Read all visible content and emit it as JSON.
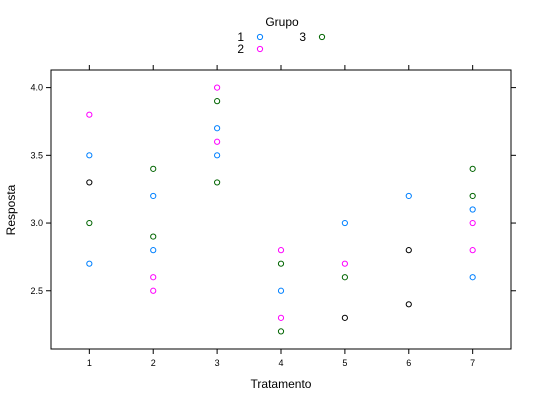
{
  "chart_data": {
    "type": "scatter",
    "xlabel": "Tratamento",
    "ylabel": "Resposta",
    "xlim": [
      0.4,
      7.6
    ],
    "ylim": [
      2.07,
      4.13
    ],
    "x_ticks": [
      1,
      2,
      3,
      4,
      5,
      6,
      7
    ],
    "y_ticks": [
      2.5,
      3.0,
      3.5,
      4.0
    ],
    "y_tick_labels": [
      "2.5",
      "3.0",
      "3.5",
      "4.0"
    ],
    "grid": false,
    "legend": {
      "title": "Grupo",
      "position": "top-center",
      "entries": [
        {
          "label": "1",
          "color": "#0080ff"
        },
        {
          "label": "2",
          "color": "#ff00ff"
        },
        {
          "label": "3",
          "color": "#006400"
        }
      ]
    },
    "series": [
      {
        "name": "1",
        "color": "#0080ff",
        "points": [
          [
            1,
            3.5
          ],
          [
            1,
            2.7
          ],
          [
            2,
            3.2
          ],
          [
            2,
            2.8
          ],
          [
            3,
            3.7
          ],
          [
            3,
            3.5
          ],
          [
            4,
            2.5
          ],
          [
            5,
            3.0
          ],
          [
            6,
            3.2
          ],
          [
            7,
            3.1
          ],
          [
            7,
            2.6
          ]
        ]
      },
      {
        "name": "2",
        "color": "#ff00ff",
        "points": [
          [
            1,
            3.8
          ],
          [
            2,
            2.6
          ],
          [
            2,
            2.5
          ],
          [
            3,
            4.0
          ],
          [
            3,
            3.6
          ],
          [
            4,
            2.8
          ],
          [
            4,
            2.3
          ],
          [
            5,
            2.7
          ],
          [
            7,
            3.0
          ],
          [
            7,
            2.8
          ]
        ]
      },
      {
        "name": "3",
        "color": "#006400",
        "points": [
          [
            1,
            3.0
          ],
          [
            2,
            3.4
          ],
          [
            2,
            2.9
          ],
          [
            3,
            3.9
          ],
          [
            3,
            3.3
          ],
          [
            4,
            2.7
          ],
          [
            4,
            2.2
          ],
          [
            5,
            2.6
          ],
          [
            7,
            3.4
          ],
          [
            7,
            3.2
          ]
        ]
      },
      {
        "color": "#000000",
        "points": [
          [
            1,
            3.3
          ],
          [
            5,
            2.3
          ],
          [
            6,
            2.8
          ],
          [
            6,
            2.4
          ]
        ]
      }
    ]
  }
}
